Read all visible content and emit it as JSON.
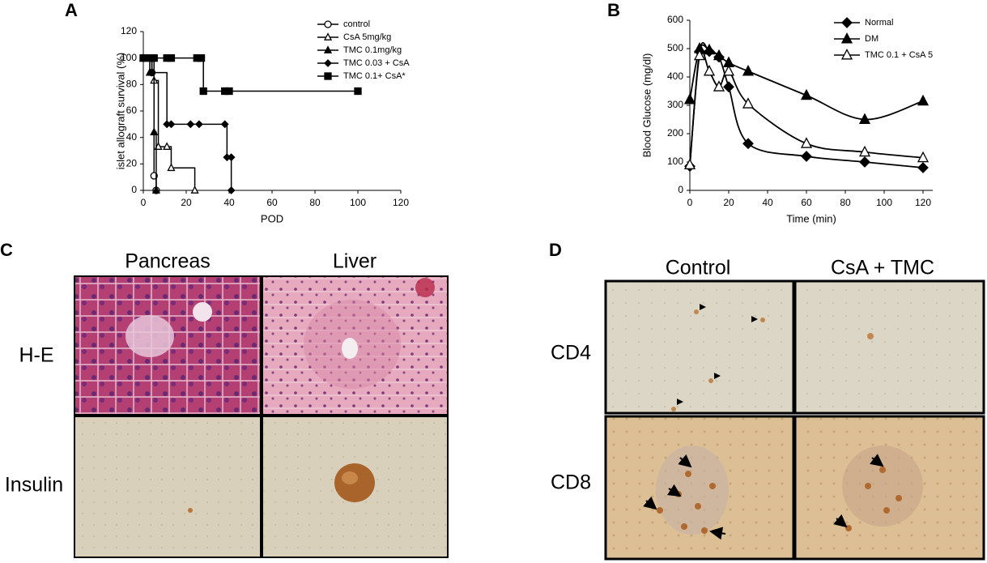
{
  "panels": [
    "A",
    "B",
    "C",
    "D"
  ],
  "chart_data": [
    {
      "type": "line",
      "step": true,
      "xlabel": "POD",
      "ylabel": "islet allograft survival (%)",
      "xlim": [
        0,
        120
      ],
      "xticks": [
        0,
        20,
        40,
        60,
        80,
        100,
        120
      ],
      "ylim": [
        0,
        120
      ],
      "yticks": [
        0,
        20,
        40,
        60,
        80,
        100,
        120
      ],
      "legend": "upper right",
      "series": [
        {
          "name": "control",
          "color": "#000000",
          "marker": "circle-open",
          "x": [
            0,
            4,
            5,
            6
          ],
          "values": [
            100,
            89,
            11,
            0
          ]
        },
        {
          "name": "CsA 5mg/kg",
          "color": "#000000",
          "marker": "triangle-open",
          "x": [
            0,
            5,
            7,
            11,
            13,
            24
          ],
          "values": [
            100,
            83,
            33,
            33,
            17,
            0
          ]
        },
        {
          "name": "TMC 0.1mg/kg",
          "color": "#000000",
          "marker": "triangle",
          "x": [
            0,
            3,
            5,
            6
          ],
          "values": [
            100,
            89,
            44,
            0
          ]
        },
        {
          "name": "TMC 0.03 + CsA",
          "color": "#000000",
          "marker": "diamond",
          "x": [
            0,
            4,
            11,
            13,
            22,
            26,
            38,
            39,
            41,
            41
          ],
          "values": [
            100,
            89,
            50,
            50,
            50,
            50,
            50,
            25,
            25,
            0
          ]
        },
        {
          "name": "TMC 0.1+ CsA*",
          "color": "#000000",
          "marker": "square",
          "x": [
            0,
            3,
            5,
            11,
            13,
            25,
            27,
            28,
            38,
            40,
            100
          ],
          "values": [
            100,
            100,
            100,
            100,
            100,
            100,
            100,
            75,
            75,
            75,
            75
          ]
        }
      ]
    },
    {
      "type": "line",
      "step": false,
      "xlabel": "Time (min)",
      "ylabel": "Blood Glucose (mg/dl)",
      "xlim": [
        0,
        125
      ],
      "xticks": [
        0,
        20,
        40,
        60,
        80,
        100,
        120
      ],
      "ylim": [
        0,
        600
      ],
      "yticks": [
        0,
        100,
        200,
        300,
        400,
        500,
        600
      ],
      "legend": "upper right",
      "series": [
        {
          "name": "Normal",
          "color": "#000000",
          "marker": "diamond",
          "x": [
            0,
            5,
            10,
            15,
            20,
            30,
            60,
            90,
            120
          ],
          "values": [
            85,
            490,
            490,
            470,
            365,
            165,
            120,
            100,
            80
          ]
        },
        {
          "name": "DM",
          "color": "#000000",
          "marker": "triangle",
          "x": [
            0,
            5,
            10,
            15,
            20,
            30,
            60,
            90,
            120
          ],
          "values": [
            320,
            500,
            495,
            475,
            450,
            420,
            335,
            250,
            315
          ]
        },
        {
          "name": "TMC 0.1 + CsA 5",
          "color": "#000000",
          "marker": "triangle-open",
          "x": [
            0,
            5,
            10,
            15,
            20,
            30,
            60,
            90,
            120
          ],
          "values": [
            90,
            475,
            420,
            365,
            420,
            305,
            165,
            135,
            115
          ]
        }
      ]
    }
  ],
  "panel_c": {
    "columns": [
      "Pancreas",
      "Liver"
    ],
    "rows": [
      "H-E",
      "Insulin"
    ]
  },
  "panel_d": {
    "columns": [
      "Control",
      "CsA + TMC"
    ],
    "rows": [
      "CD4",
      "CD8"
    ]
  }
}
